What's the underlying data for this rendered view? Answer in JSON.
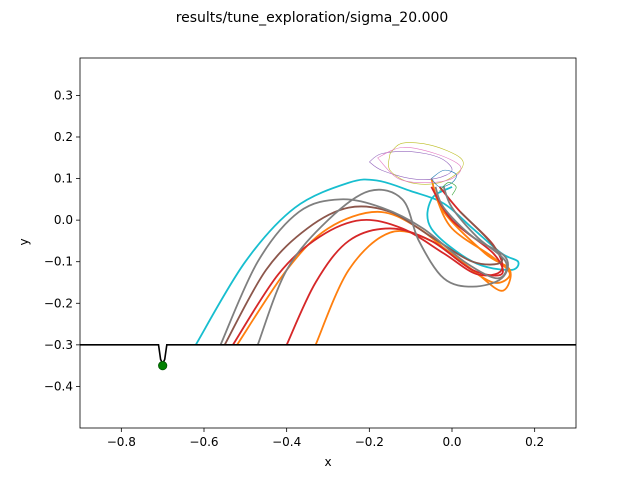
{
  "chart_data": {
    "type": "line",
    "title": "results/tune_exploration/sigma_20.000",
    "xlabel": "x",
    "ylabel": "y",
    "xlim": [
      -0.9,
      0.3
    ],
    "ylim": [
      -0.5,
      0.39
    ],
    "grid": false,
    "x_ticks": [
      -0.8,
      -0.6,
      -0.4,
      -0.2,
      0.0,
      0.2
    ],
    "x_tick_labels": [
      "−0.8",
      "−0.6",
      "−0.4",
      "−0.2",
      "0.0",
      "0.2"
    ],
    "y_ticks": [
      0.3,
      0.2,
      0.1,
      0.0,
      -0.1,
      -0.2,
      -0.3,
      -0.4
    ],
    "y_tick_labels": [
      "0.3",
      "0.2",
      "0.1",
      "0.0",
      "−0.1",
      "−0.2",
      "−0.3",
      "−0.4"
    ],
    "ground": {
      "color": "#000000",
      "points": [
        [
          -0.9,
          -0.3
        ],
        [
          -0.71,
          -0.3
        ],
        [
          -0.705,
          -0.335
        ],
        [
          -0.7,
          -0.345
        ],
        [
          -0.695,
          -0.335
        ],
        [
          -0.69,
          -0.3
        ],
        [
          0.3,
          -0.3
        ]
      ]
    },
    "goal_marker": {
      "x": -0.7,
      "y": -0.35,
      "color": "#008000"
    },
    "series": [
      {
        "color": "#17becf",
        "width": 1.8,
        "points": [
          [
            -0.62,
            -0.3
          ],
          [
            -0.5,
            -0.1
          ],
          [
            -0.38,
            0.03
          ],
          [
            -0.25,
            0.09
          ],
          [
            -0.18,
            0.095
          ],
          [
            -0.1,
            0.07
          ],
          [
            -0.02,
            0.04
          ],
          [
            0.05,
            -0.02
          ],
          [
            0.12,
            -0.08
          ],
          [
            0.16,
            -0.1
          ],
          [
            0.14,
            -0.12
          ],
          [
            0.05,
            -0.1
          ],
          [
            -0.05,
            -0.02
          ],
          [
            -0.05,
            0.05
          ],
          [
            0.0,
            0.08
          ]
        ]
      },
      {
        "color": "#ff7f0e",
        "width": 1.8,
        "points": [
          [
            -0.33,
            -0.3
          ],
          [
            -0.25,
            -0.12
          ],
          [
            -0.15,
            -0.03
          ],
          [
            -0.05,
            -0.05
          ],
          [
            0.05,
            -0.12
          ],
          [
            0.12,
            -0.17
          ],
          [
            0.14,
            -0.12
          ],
          [
            0.08,
            -0.08
          ],
          [
            -0.02,
            0.02
          ],
          [
            -0.05,
            0.1
          ]
        ]
      },
      {
        "color": "#ff7f0e",
        "width": 1.8,
        "points": [
          [
            -0.52,
            -0.3
          ],
          [
            -0.4,
            -0.12
          ],
          [
            -0.3,
            -0.02
          ],
          [
            -0.18,
            0.02
          ],
          [
            -0.08,
            -0.02
          ],
          [
            0.02,
            -0.1
          ],
          [
            0.1,
            -0.15
          ],
          [
            0.14,
            -0.13
          ],
          [
            0.1,
            -0.09
          ],
          [
            0.0,
            -0.02
          ],
          [
            -0.04,
            0.06
          ]
        ]
      },
      {
        "color": "#d62728",
        "width": 1.8,
        "points": [
          [
            -0.4,
            -0.3
          ],
          [
            -0.33,
            -0.15
          ],
          [
            -0.25,
            -0.05
          ],
          [
            -0.15,
            -0.02
          ],
          [
            -0.05,
            -0.05
          ],
          [
            0.05,
            -0.12
          ],
          [
            0.12,
            -0.13
          ],
          [
            0.1,
            -0.08
          ],
          [
            0.0,
            0.0
          ],
          [
            -0.05,
            0.08
          ]
        ]
      },
      {
        "color": "#d62728",
        "width": 1.8,
        "points": [
          [
            -0.53,
            -0.3
          ],
          [
            -0.42,
            -0.13
          ],
          [
            -0.32,
            -0.04
          ],
          [
            -0.22,
            0.0
          ],
          [
            -0.12,
            -0.02
          ],
          [
            -0.02,
            -0.08
          ],
          [
            0.06,
            -0.13
          ],
          [
            0.12,
            -0.12
          ],
          [
            0.1,
            -0.06
          ],
          [
            0.02,
            0.02
          ],
          [
            -0.03,
            0.08
          ]
        ]
      },
      {
        "color": "#8c564b",
        "width": 1.8,
        "points": [
          [
            -0.55,
            -0.3
          ],
          [
            -0.45,
            -0.12
          ],
          [
            -0.35,
            -0.02
          ],
          [
            -0.25,
            0.03
          ],
          [
            -0.15,
            0.02
          ],
          [
            -0.05,
            -0.04
          ],
          [
            0.05,
            -0.1
          ],
          [
            0.12,
            -0.1
          ],
          [
            0.09,
            -0.05
          ],
          [
            0.02,
            0.02
          ]
        ]
      },
      {
        "color": "#7f7f7f",
        "width": 1.8,
        "points": [
          [
            -0.56,
            -0.3
          ],
          [
            -0.47,
            -0.1
          ],
          [
            -0.37,
            0.02
          ],
          [
            -0.27,
            0.05
          ],
          [
            -0.17,
            0.03
          ],
          [
            -0.07,
            -0.02
          ],
          [
            0.03,
            -0.1
          ],
          [
            0.11,
            -0.14
          ],
          [
            0.13,
            -0.1
          ],
          [
            0.06,
            -0.04
          ],
          [
            0.0,
            0.03
          ],
          [
            -0.02,
            0.08
          ]
        ]
      },
      {
        "color": "#7f7f7f",
        "width": 1.8,
        "points": [
          [
            -0.47,
            -0.3
          ],
          [
            -0.4,
            -0.12
          ],
          [
            -0.3,
            0.0
          ],
          [
            -0.2,
            0.07
          ],
          [
            -0.12,
            0.05
          ],
          [
            -0.08,
            -0.05
          ],
          [
            -0.02,
            -0.14
          ],
          [
            0.05,
            -0.16
          ],
          [
            0.12,
            -0.14
          ],
          [
            0.13,
            -0.09
          ],
          [
            0.05,
            -0.04
          ],
          [
            -0.02,
            0.03
          ],
          [
            -0.04,
            0.08
          ]
        ]
      },
      {
        "color": "#9467bd",
        "width": 0.6,
        "points": [
          [
            -0.2,
            0.14
          ],
          [
            -0.17,
            0.16
          ],
          [
            -0.1,
            0.165
          ],
          [
            -0.03,
            0.15
          ],
          [
            0.0,
            0.12
          ],
          [
            -0.04,
            0.1
          ],
          [
            -0.1,
            0.1
          ],
          [
            -0.17,
            0.12
          ],
          [
            -0.2,
            0.14
          ]
        ]
      },
      {
        "color": "#bcbd22",
        "width": 0.6,
        "points": [
          [
            -0.15,
            0.16
          ],
          [
            -0.12,
            0.185
          ],
          [
            -0.05,
            0.18
          ],
          [
            0.02,
            0.15
          ],
          [
            0.02,
            0.12
          ],
          [
            -0.03,
            0.09
          ],
          [
            -0.1,
            0.09
          ],
          [
            -0.15,
            0.12
          ],
          [
            -0.15,
            0.16
          ]
        ]
      },
      {
        "color": "#e377c2",
        "width": 0.6,
        "points": [
          [
            -0.18,
            0.15
          ],
          [
            -0.12,
            0.175
          ],
          [
            -0.04,
            0.16
          ],
          [
            0.02,
            0.13
          ],
          [
            0.0,
            0.1
          ],
          [
            -0.06,
            0.09
          ],
          [
            -0.13,
            0.1
          ],
          [
            -0.18,
            0.15
          ]
        ]
      },
      {
        "color": "#1f77b4",
        "width": 0.6,
        "points": [
          [
            -0.05,
            0.1
          ],
          [
            -0.02,
            0.12
          ],
          [
            0.01,
            0.11
          ],
          [
            0.0,
            0.09
          ],
          [
            -0.03,
            0.08
          ],
          [
            -0.05,
            0.1
          ]
        ]
      },
      {
        "color": "#2ca02c",
        "width": 0.6,
        "points": [
          [
            -0.03,
            0.07
          ],
          [
            -0.01,
            0.09
          ],
          [
            0.01,
            0.08
          ],
          [
            0.0,
            0.06
          ]
        ]
      }
    ]
  }
}
